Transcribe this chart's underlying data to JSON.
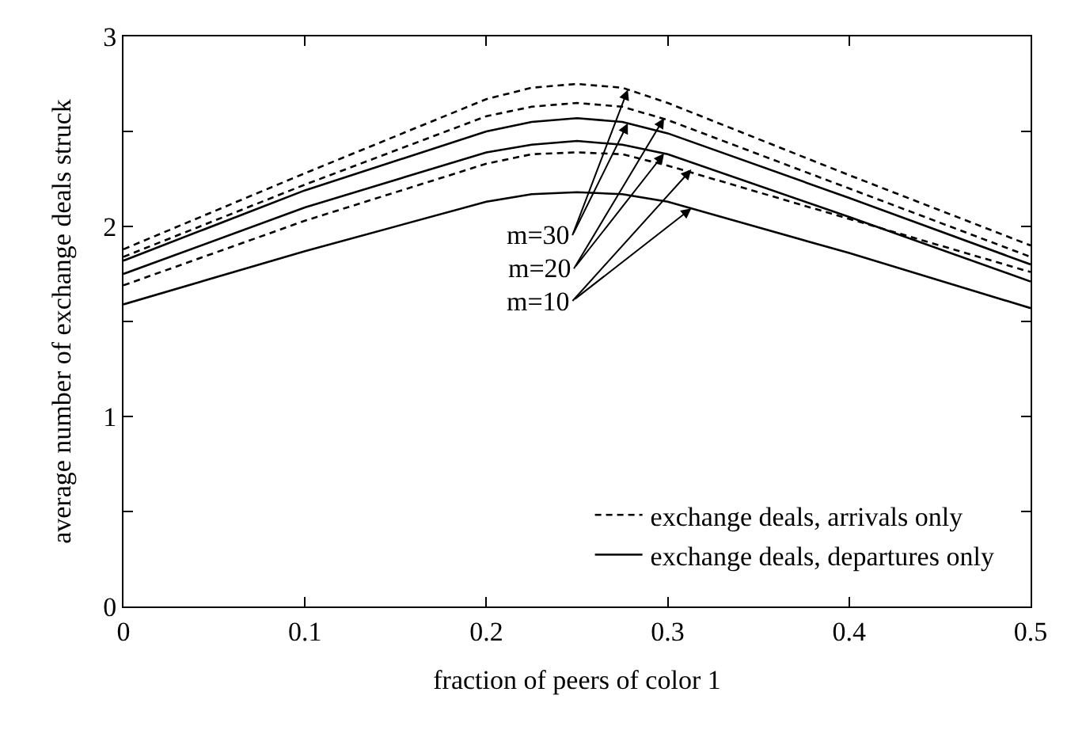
{
  "chart_data": {
    "type": "line",
    "xlabel": "fraction of peers of color 1",
    "ylabel": "average number of exchange deals struck",
    "x": [
      0,
      0.1,
      0.2,
      0.225,
      0.25,
      0.275,
      0.3,
      0.4,
      0.5
    ],
    "series": [
      {
        "name": "exchange deals, arrivals only",
        "color": "#000000",
        "line_style": "dashed",
        "values": [
          1.88,
          2.28,
          2.67,
          2.73,
          2.75,
          2.73,
          2.65,
          2.27,
          1.9
        ]
      },
      {
        "color": "#000000",
        "line_style": "dashed",
        "values": [
          1.84,
          2.22,
          2.58,
          2.63,
          2.65,
          2.63,
          2.56,
          2.2,
          1.84
        ]
      },
      {
        "color": "#000000",
        "line_style": "dashed",
        "values": [
          1.69,
          2.03,
          2.33,
          2.38,
          2.39,
          2.38,
          2.32,
          2.04,
          1.76
        ]
      },
      {
        "name": "exchange deals, departures only",
        "color": "#000000",
        "line_style": "solid",
        "values": [
          1.82,
          2.19,
          2.5,
          2.55,
          2.57,
          2.55,
          2.49,
          2.15,
          1.8
        ]
      },
      {
        "color": "#000000",
        "line_style": "solid",
        "values": [
          1.75,
          2.1,
          2.39,
          2.43,
          2.45,
          2.43,
          2.38,
          2.05,
          1.71
        ]
      },
      {
        "color": "#000000",
        "line_style": "solid",
        "values": [
          1.59,
          1.87,
          2.13,
          2.17,
          2.18,
          2.17,
          2.13,
          1.86,
          1.57
        ]
      }
    ],
    "annotations": [
      {
        "text": "m=30",
        "x": 0.278,
        "y": 2.72
      },
      {
        "text": "m=20",
        "x": 0.298,
        "y": 2.57
      },
      {
        "text": "m=10",
        "x": 0.313,
        "y": 2.3
      }
    ],
    "xlim": [
      0,
      0.5
    ],
    "xticks": [
      0,
      0.1,
      0.2,
      0.3,
      0.4,
      0.5
    ],
    "ylim": [
      0,
      3
    ],
    "yticks": [
      0,
      {
        "value": 0.5,
        "label": null
      },
      1,
      {
        "value": 1.5,
        "label": null
      },
      2,
      {
        "value": 2.5,
        "label": null
      },
      3
    ],
    "legend": "bottom right",
    "marker": "none"
  }
}
